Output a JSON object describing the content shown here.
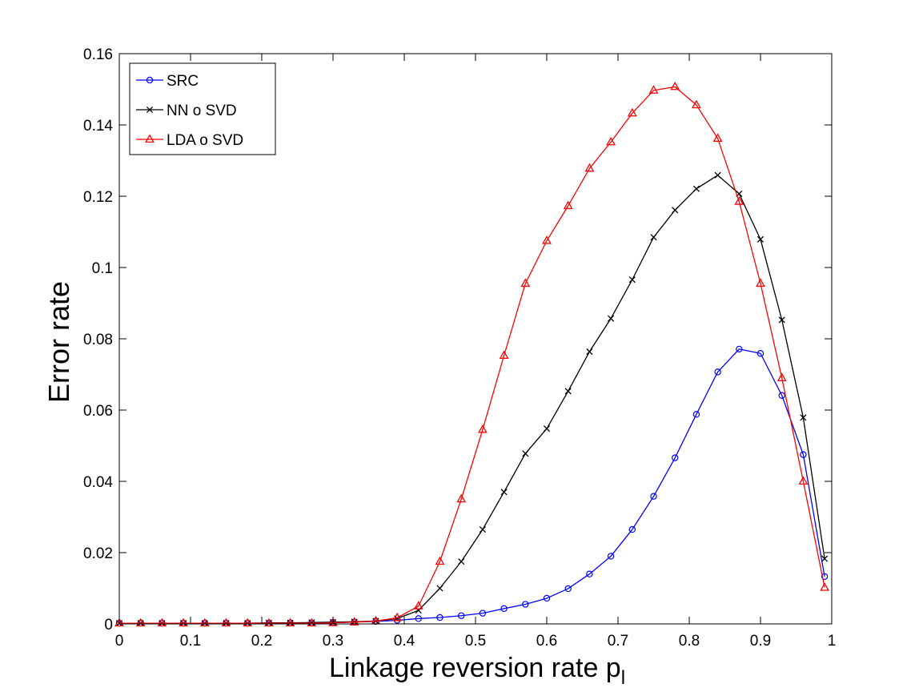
{
  "chart_data": {
    "type": "line",
    "title": "",
    "xlabel": "Linkage reversion rate p",
    "xlabel_subscript": "l",
    "ylabel": "Error rate",
    "xlim": [
      0,
      1
    ],
    "ylim": [
      0,
      0.16
    ],
    "xticks": [
      0,
      0.1,
      0.2,
      0.3,
      0.4,
      0.5,
      0.6,
      0.7,
      0.8,
      0.9,
      1
    ],
    "xtick_labels": [
      "0",
      "0.1",
      "0.2",
      "0.3",
      "0.4",
      "0.5",
      "0.6",
      "0.7",
      "0.8",
      "0.9",
      "1"
    ],
    "yticks": [
      0,
      0.02,
      0.04,
      0.06,
      0.08,
      0.1,
      0.12,
      0.14,
      0.16
    ],
    "ytick_labels": [
      "0",
      "0.02",
      "0.04",
      "0.06",
      "0.08",
      "0.1",
      "0.12",
      "0.14",
      "0.16"
    ],
    "grid": false,
    "legend_position": "top-left",
    "x": [
      0,
      0.03,
      0.06,
      0.09,
      0.12,
      0.15,
      0.18,
      0.21,
      0.24,
      0.27,
      0.3,
      0.33,
      0.36,
      0.39,
      0.42,
      0.45,
      0.48,
      0.51,
      0.54,
      0.57,
      0.6,
      0.63,
      0.66,
      0.69,
      0.72,
      0.75,
      0.78,
      0.81,
      0.84,
      0.87,
      0.9,
      0.93,
      0.96,
      0.99
    ],
    "series": [
      {
        "name": "SRC",
        "color": "#0000ff",
        "marker": "circle",
        "values": [
          0.0002,
          0.0002,
          0.0002,
          0.0002,
          0.0002,
          0.0002,
          0.0002,
          0.0002,
          0.0003,
          0.0003,
          0.0004,
          0.0005,
          0.0007,
          0.001,
          0.0015,
          0.0018,
          0.0023,
          0.003,
          0.0043,
          0.0055,
          0.0072,
          0.0099,
          0.014,
          0.019,
          0.0265,
          0.0358,
          0.0466,
          0.0588,
          0.0707,
          0.0771,
          0.0759,
          0.0641,
          0.0475,
          0.0133
        ]
      },
      {
        "name": "NN o SVD",
        "color": "#000000",
        "marker": "x",
        "values": [
          0.0002,
          0.0002,
          0.0002,
          0.0002,
          0.0002,
          0.0002,
          0.0002,
          0.0003,
          0.0003,
          0.0004,
          0.0005,
          0.0006,
          0.0008,
          0.0015,
          0.0038,
          0.01,
          0.0175,
          0.0265,
          0.037,
          0.0478,
          0.0548,
          0.0653,
          0.0764,
          0.0857,
          0.0966,
          0.1085,
          0.1161,
          0.1221,
          0.1259,
          0.1207,
          0.1079,
          0.0853,
          0.0579,
          0.0183
        ]
      },
      {
        "name": "LDA o SVD",
        "color": "#ff0000",
        "marker": "triangle",
        "values": [
          0.0002,
          0.0002,
          0.0002,
          0.0002,
          0.0002,
          0.0002,
          0.0002,
          0.0002,
          0.0002,
          0.0002,
          0.0003,
          0.0005,
          0.0008,
          0.0017,
          0.005,
          0.0175,
          0.035,
          0.0545,
          0.0753,
          0.0955,
          0.1075,
          0.1173,
          0.1278,
          0.1352,
          0.1433,
          0.1497,
          0.1507,
          0.1456,
          0.1362,
          0.1185,
          0.0955,
          0.069,
          0.04,
          0.0102
        ]
      }
    ]
  }
}
